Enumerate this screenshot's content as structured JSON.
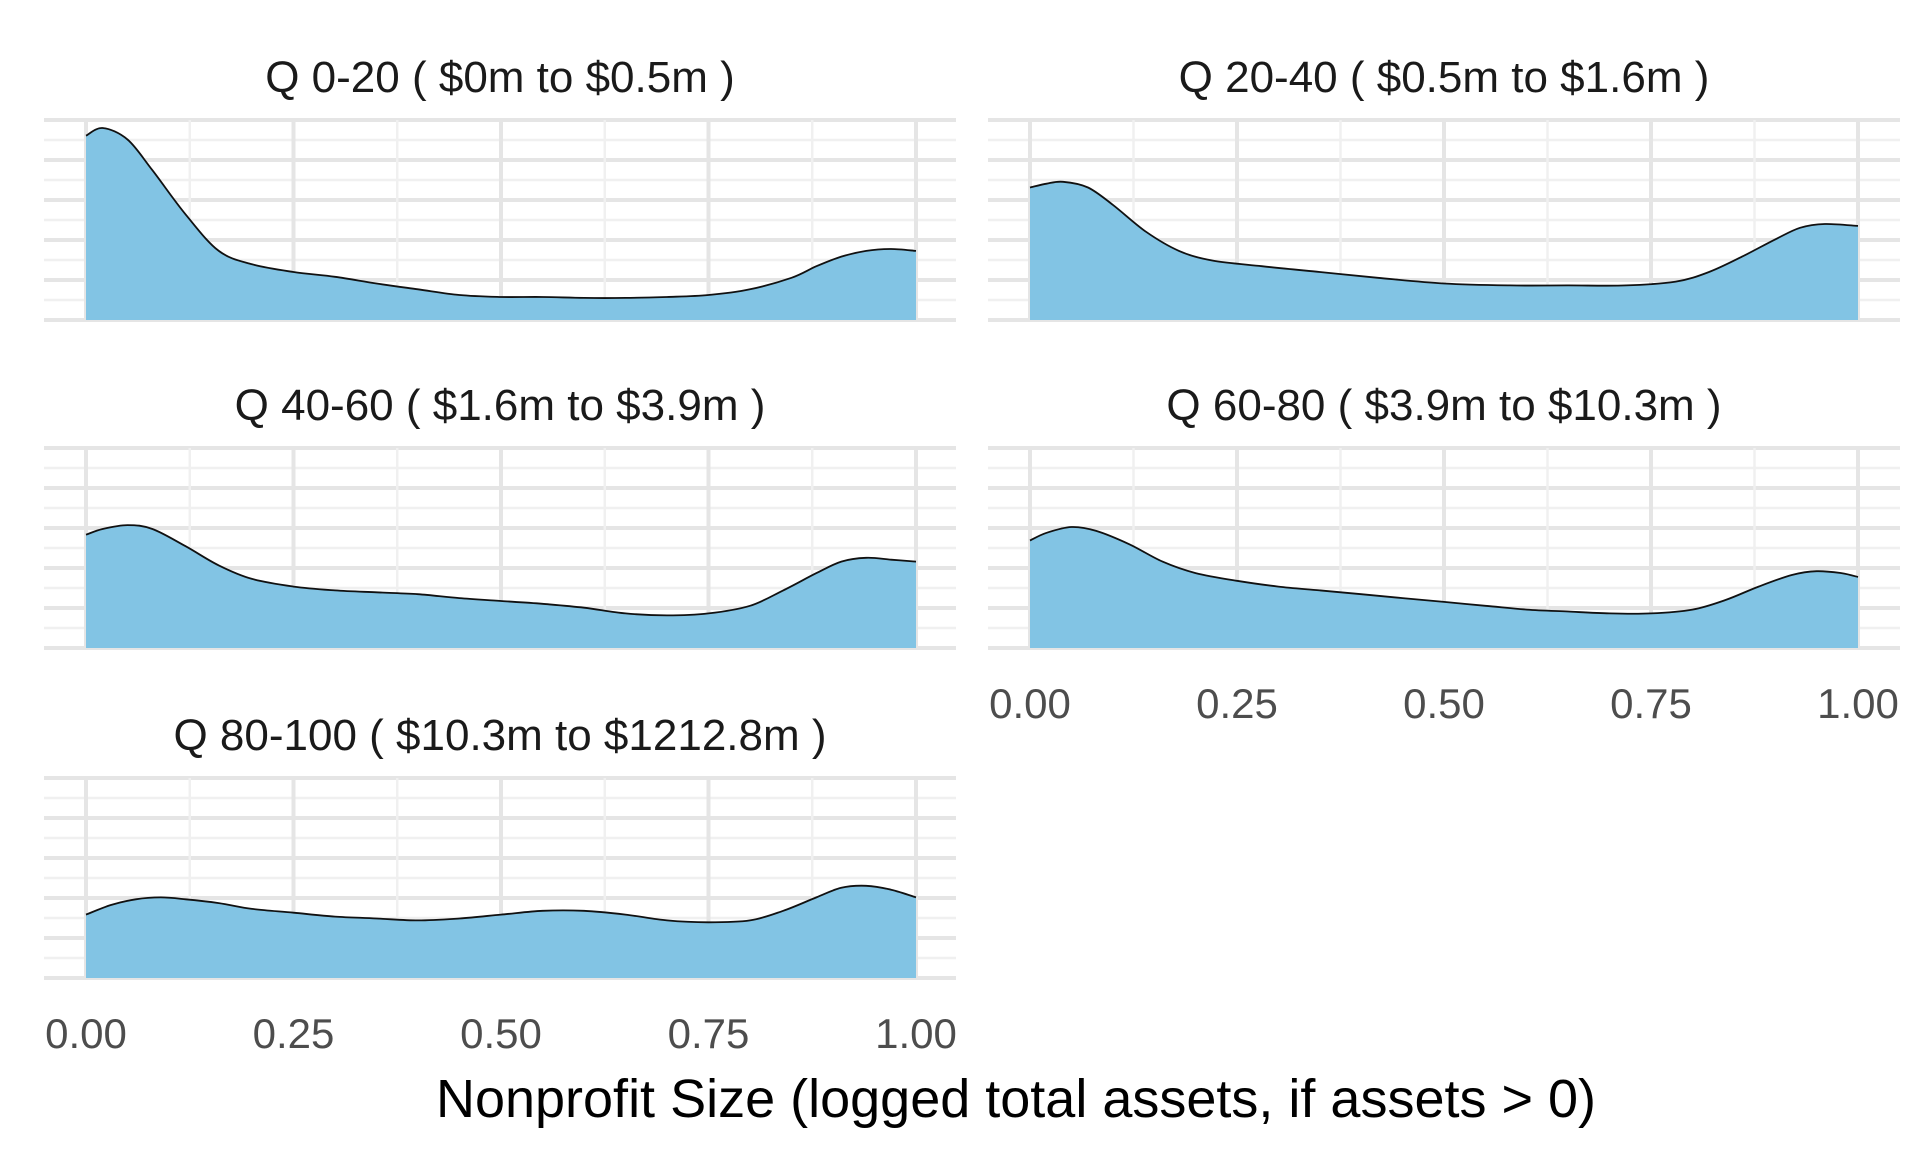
{
  "chart_data": {
    "type": "area",
    "xlabel": "Nonprofit Size (logged total assets, if assets > 0)",
    "ylabel": "",
    "xlim": [
      0,
      1
    ],
    "x_ticks": [
      "0.00",
      "0.25",
      "0.50",
      "0.75",
      "1.00"
    ],
    "grid": true,
    "fill_color": "#82c4e4",
    "line_color": "#111111",
    "facets": [
      {
        "title": "Q 0-20   ( $0m to $0.5m )",
        "x": [
          0,
          0.02,
          0.05,
          0.08,
          0.12,
          0.16,
          0.2,
          0.25,
          0.3,
          0.35,
          0.4,
          0.45,
          0.5,
          0.55,
          0.6,
          0.65,
          0.7,
          0.75,
          0.8,
          0.85,
          0.88,
          0.91,
          0.94,
          0.97,
          1.0
        ],
        "y": [
          0.96,
          1.0,
          0.94,
          0.78,
          0.55,
          0.36,
          0.29,
          0.25,
          0.225,
          0.19,
          0.16,
          0.13,
          0.12,
          0.12,
          0.115,
          0.115,
          0.12,
          0.13,
          0.16,
          0.22,
          0.28,
          0.33,
          0.36,
          0.37,
          0.36
        ]
      },
      {
        "title": "Q 20-40   ( $0.5m to $1.6m )",
        "x": [
          0,
          0.02,
          0.04,
          0.07,
          0.1,
          0.14,
          0.18,
          0.22,
          0.28,
          0.35,
          0.42,
          0.5,
          0.58,
          0.65,
          0.72,
          0.78,
          0.82,
          0.86,
          0.9,
          0.93,
          0.96,
          1.0
        ],
        "y": [
          0.69,
          0.71,
          0.72,
          0.69,
          0.6,
          0.46,
          0.36,
          0.31,
          0.28,
          0.25,
          0.22,
          0.19,
          0.18,
          0.18,
          0.18,
          0.2,
          0.25,
          0.33,
          0.42,
          0.48,
          0.5,
          0.49
        ]
      },
      {
        "title": "Q 40-60   ( $1.6m to $3.9m )",
        "x": [
          0,
          0.02,
          0.05,
          0.08,
          0.12,
          0.16,
          0.2,
          0.25,
          0.3,
          0.35,
          0.4,
          0.45,
          0.5,
          0.55,
          0.6,
          0.65,
          0.7,
          0.75,
          0.8,
          0.84,
          0.88,
          0.91,
          0.94,
          0.97,
          1.0
        ],
        "y": [
          0.59,
          0.62,
          0.64,
          0.62,
          0.53,
          0.43,
          0.36,
          0.32,
          0.3,
          0.29,
          0.28,
          0.26,
          0.245,
          0.23,
          0.21,
          0.18,
          0.17,
          0.18,
          0.22,
          0.3,
          0.39,
          0.45,
          0.47,
          0.46,
          0.45
        ]
      },
      {
        "title": "Q 60-80   ( $3.9m to $10.3m )",
        "x": [
          0,
          0.02,
          0.05,
          0.08,
          0.12,
          0.16,
          0.2,
          0.25,
          0.3,
          0.35,
          0.4,
          0.45,
          0.5,
          0.55,
          0.6,
          0.65,
          0.7,
          0.75,
          0.8,
          0.84,
          0.88,
          0.92,
          0.95,
          0.98,
          1.0
        ],
        "y": [
          0.56,
          0.6,
          0.63,
          0.61,
          0.54,
          0.45,
          0.39,
          0.35,
          0.32,
          0.3,
          0.28,
          0.26,
          0.24,
          0.22,
          0.2,
          0.19,
          0.18,
          0.18,
          0.2,
          0.25,
          0.32,
          0.38,
          0.4,
          0.39,
          0.37
        ]
      },
      {
        "title": "Q 80-100   ( $10.3m to $1212.8m )",
        "x": [
          0,
          0.03,
          0.06,
          0.09,
          0.12,
          0.16,
          0.2,
          0.25,
          0.3,
          0.35,
          0.4,
          0.45,
          0.5,
          0.55,
          0.6,
          0.65,
          0.7,
          0.75,
          0.8,
          0.84,
          0.88,
          0.91,
          0.94,
          0.97,
          1.0
        ],
        "y": [
          0.33,
          0.38,
          0.41,
          0.42,
          0.41,
          0.39,
          0.36,
          0.34,
          0.32,
          0.31,
          0.3,
          0.31,
          0.33,
          0.35,
          0.35,
          0.33,
          0.3,
          0.29,
          0.3,
          0.35,
          0.42,
          0.47,
          0.48,
          0.46,
          0.42
        ]
      }
    ]
  }
}
